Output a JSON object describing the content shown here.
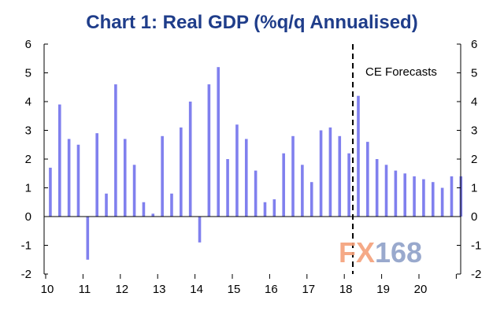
{
  "chart_data": {
    "type": "bar",
    "title": "Chart 1: Real GDP (%q/q Annualised)",
    "xlabel": "",
    "ylabel": "",
    "ylim": [
      -2,
      6
    ],
    "y_ticks": [
      6,
      5,
      4,
      3,
      2,
      1,
      0,
      -1,
      -2
    ],
    "x_tick_labels": [
      "10",
      "11",
      "12",
      "13",
      "14",
      "15",
      "16",
      "17",
      "18",
      "19",
      "20"
    ],
    "series": [
      {
        "name": "Real GDP (%q/q annualised)",
        "values": [
          1.7,
          3.9,
          2.7,
          2.5,
          -1.5,
          2.9,
          0.8,
          4.6,
          2.7,
          1.8,
          0.5,
          0.1,
          2.8,
          0.8,
          3.1,
          4.0,
          -0.9,
          4.6,
          5.2,
          2.0,
          3.2,
          2.7,
          1.6,
          0.5,
          0.6,
          2.2,
          2.8,
          1.8,
          1.2,
          3.0,
          3.1,
          2.8,
          2.2,
          4.2,
          2.6,
          2.0,
          1.8,
          1.6,
          1.5,
          1.4,
          1.3,
          1.2,
          1.0,
          1.4,
          1.4
        ]
      }
    ],
    "forecast_start_label": "18",
    "annotation": "CE Forecasts",
    "bar_color": "#8080ee",
    "title_color": "#1f3d8a",
    "grid": false
  },
  "watermark": {
    "part1": "FX",
    "part2": "168",
    "color1": "#f4a07a",
    "color2": "#8ea0c8"
  }
}
